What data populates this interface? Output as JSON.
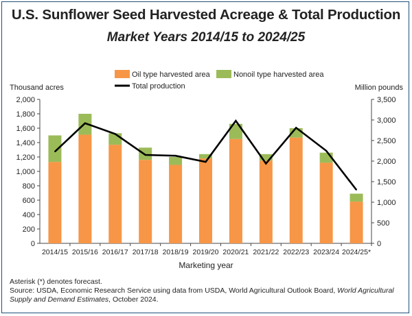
{
  "chart_data": {
    "type": "bar",
    "title": "U.S. Sunflower Seed Harvested Acreage & Total Production",
    "subtitle": "Market Years 2014/15 to 2024/25",
    "xlabel": "Marketing year",
    "ylabel_left": "Thousand acres",
    "ylabel_right": "Million pounds",
    "ylim_left": [
      0,
      2000
    ],
    "ylim_right": [
      0,
      3500
    ],
    "yticks_left": [
      "0",
      "200",
      "400",
      "600",
      "800",
      "1,000",
      "1,200",
      "1,400",
      "1,600",
      "1,800",
      "2,000"
    ],
    "yticks_right": [
      "0",
      "500",
      "1,000",
      "1,500",
      "2,000",
      "2,500",
      "3,000",
      "3,500"
    ],
    "categories": [
      "2014/15",
      "2015/16",
      "2016/17",
      "2017/18",
      "2018/19",
      "2019/20",
      "2020/21",
      "2021/22",
      "2022/23",
      "2023/24",
      "2024/25*"
    ],
    "series": [
      {
        "name": "Oil type harvested area",
        "type": "bar",
        "stack": "area",
        "axis": "left",
        "color": "#f79646",
        "values": [
          1130,
          1510,
          1370,
          1160,
          1090,
          1180,
          1450,
          1150,
          1470,
          1120,
          580
        ]
      },
      {
        "name": "Nonoil type harvested area",
        "type": "bar",
        "stack": "area",
        "axis": "left",
        "color": "#9bbb59",
        "values": [
          370,
          290,
          160,
          170,
          110,
          60,
          210,
          90,
          130,
          140,
          110
        ]
      },
      {
        "name": "Total production",
        "type": "line",
        "axis": "right",
        "color": "#000000",
        "values": [
          2230,
          2920,
          2660,
          2150,
          2130,
          1980,
          2980,
          1940,
          2810,
          2250,
          1300
        ]
      }
    ]
  },
  "footnote": {
    "line1": "Asterisk (*) denotes forecast.",
    "line2_prefix": "Source: USDA, Economic Research Service using data from USDA, World Agricultural Outlook Board, ",
    "line2_italic": "World Agricultural Supply and Demand Estimates",
    "line2_suffix": ", October 2024."
  }
}
